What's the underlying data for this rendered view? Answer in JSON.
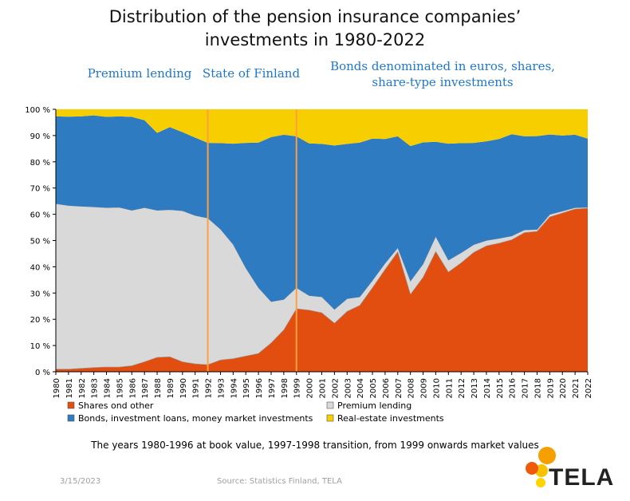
{
  "header": {
    "title_line1": "Distribution of the pension insurance companies’",
    "title_line2": "investments in 1980-2022"
  },
  "bands": {
    "premium_lending": "Premium lending",
    "state_of_finland": "State of Finland",
    "bonds_line1": "Bonds denominated in euros, shares,",
    "bonds_line2": "share-type investments"
  },
  "footnote": "The years 1980-1996 at book value, 1997-1998 transition, from 1999 onwards market values",
  "footer": {
    "date": "3/15/2023",
    "source": "Source: Statistics Finland, TELA",
    "logo": "TELA"
  },
  "colors": {
    "shares": "#e14e0f",
    "premium": "#d9d9d9",
    "bonds": "#2e7bc1",
    "realestate": "#f7cf00",
    "marker": "#ffa040",
    "band_text": "#1f77c8"
  },
  "chart_data": {
    "type": "area",
    "stacked": true,
    "x": [
      1980,
      1981,
      1982,
      1983,
      1984,
      1985,
      1986,
      1987,
      1988,
      1989,
      1990,
      1991,
      1992,
      1993,
      1994,
      1995,
      1996,
      1997,
      1998,
      1999,
      2000,
      2001,
      2002,
      2003,
      2004,
      2005,
      2006,
      2007,
      2008,
      2009,
      2010,
      2011,
      2012,
      2013,
      2014,
      2015,
      2016,
      2017,
      2018,
      2019,
      2020,
      2021,
      2022
    ],
    "series": [
      {
        "name": "Shares ond other",
        "values": [
          1,
          1,
          1.3,
          1.6,
          1.8,
          1.8,
          2.3,
          3.8,
          5.5,
          5.7,
          3.8,
          3,
          2.7,
          4.5,
          5,
          6,
          7,
          11,
          16,
          24,
          23.5,
          22.5,
          18.5,
          23,
          25.3,
          32,
          39,
          45.7,
          29.5,
          36,
          45.8,
          38,
          41.5,
          45.5,
          48,
          49,
          50.3,
          53,
          53.5,
          59,
          60.5,
          62,
          62.3
        ]
      },
      {
        "name": "Premium lending",
        "values": [
          63,
          62.3,
          61.7,
          61.2,
          60.7,
          60.8,
          59.2,
          58.7,
          56,
          56,
          57.5,
          56.5,
          55.8,
          49.8,
          43.5,
          33.5,
          25,
          15.7,
          11.5,
          8,
          5.5,
          6,
          5.2,
          4.8,
          3.2,
          2.7,
          2.3,
          1.5,
          5,
          5,
          5.7,
          4.5,
          3.8,
          2.9,
          2,
          1.8,
          1.4,
          1,
          0.7,
          0.9,
          0.7,
          0.5,
          0.3
        ]
      },
      {
        "name": "Bonds, investment loans, money market investments",
        "values": [
          33.3,
          33.9,
          34.3,
          34.9,
          34.6,
          34.7,
          35.6,
          33.3,
          29.5,
          31.5,
          30,
          29.7,
          28.7,
          32.8,
          38.4,
          47.7,
          55.3,
          62.7,
          62.8,
          57.7,
          58,
          58.3,
          62.5,
          59,
          58.8,
          54.1,
          47.4,
          42.5,
          51.5,
          46.4,
          36.1,
          44.4,
          41.8,
          38.8,
          37.8,
          37.9,
          38.8,
          35.7,
          35.6,
          30.5,
          28.8,
          27.8,
          26.2
        ]
      },
      {
        "name": "Real-estate investments",
        "values": [
          2.7,
          2.8,
          2.7,
          2.3,
          2.9,
          2.7,
          2.9,
          4.2,
          9,
          6.8,
          8.7,
          10.8,
          12.8,
          12.9,
          13.1,
          12.8,
          12.7,
          10.6,
          9.7,
          10.3,
          13,
          13.2,
          13.8,
          13.2,
          12.7,
          11.2,
          11.3,
          10.3,
          14,
          12.6,
          12.4,
          13.1,
          12.9,
          12.8,
          12.2,
          11.3,
          9.5,
          10.3,
          10.2,
          9.6,
          10,
          9.7,
          11.2
        ]
      }
    ],
    "y_ticks": [
      "0 %",
      "10 %",
      "20 %",
      "30 %",
      "40 %",
      "50 %",
      "60 %",
      "70 %",
      "80 %",
      "90 %",
      "100 %"
    ],
    "ylim": [
      0,
      100
    ],
    "markers": [
      1992,
      1999
    ],
    "legend_position": "bottom"
  }
}
